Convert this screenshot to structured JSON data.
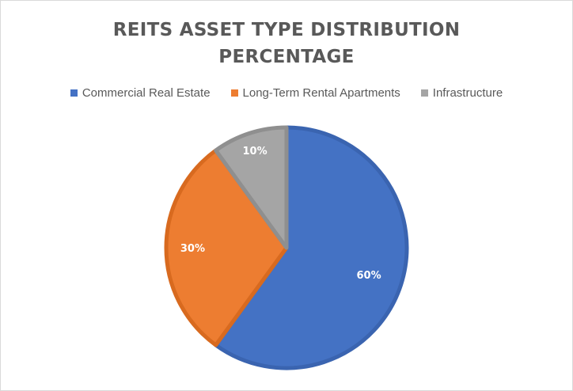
{
  "chart_data": {
    "type": "pie",
    "title": "REITS ASSET TYPE DISTRIBUTION PERCENTAGE",
    "title_lines": [
      "REITS ASSET TYPE DISTRIBUTION",
      "PERCENTAGE"
    ],
    "categories": [
      "Commercial Real Estate",
      "Long-Term Rental Apartments",
      "Infrastructure"
    ],
    "values": [
      60,
      30,
      10
    ],
    "data_labels": [
      "60%",
      "30%",
      "10%"
    ],
    "colors": [
      "#4472C4",
      "#ED7D31",
      "#A5A5A5"
    ],
    "legend_position": "top"
  }
}
